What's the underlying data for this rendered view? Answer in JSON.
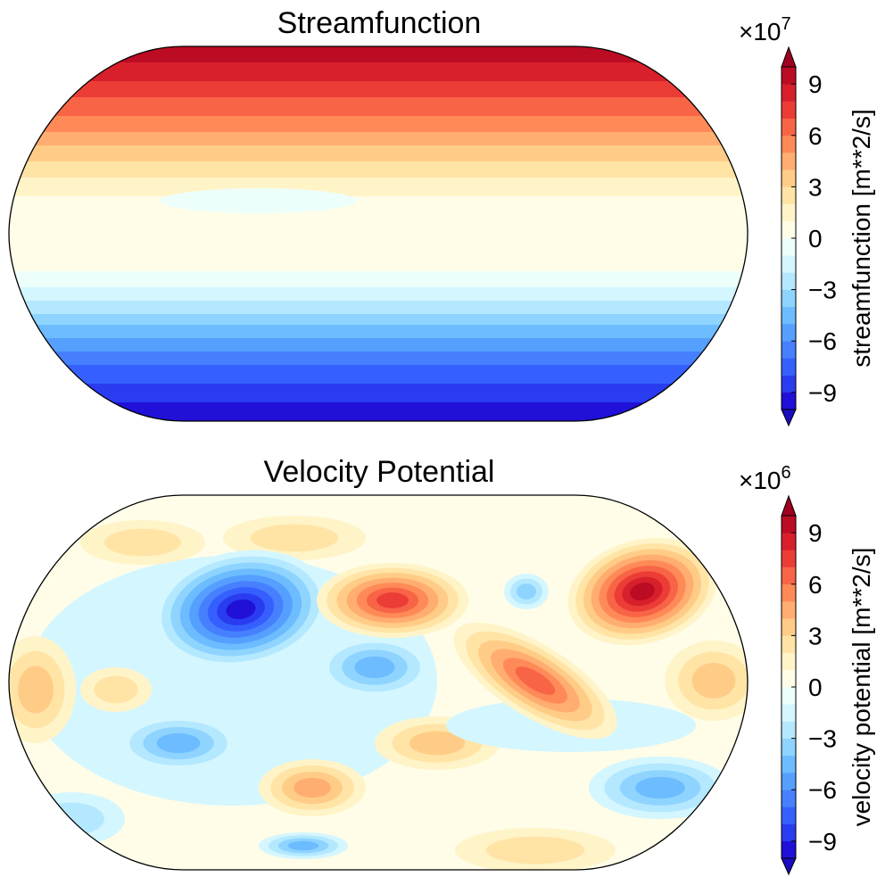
{
  "chart_data": [
    {
      "type": "contour",
      "title": "Streamfunction",
      "colorbar": {
        "label": "streamfunction [m**2/s]",
        "scale_base": "×10",
        "scale_exponent": "7",
        "lim": [
          -10,
          10
        ],
        "ticks": [
          {
            "value": -9,
            "label": "−9"
          },
          {
            "value": -6,
            "label": "−6"
          },
          {
            "value": -3,
            "label": "−3"
          },
          0,
          3,
          6,
          9
        ],
        "colors": [
          "#2010d8",
          "#2a3cf0",
          "#3560ff",
          "#4680ff",
          "#55a0ff",
          "#6cbcff",
          "#8ed4ff",
          "#b4e8ff",
          "#d4f6ff",
          "#ecfffb",
          "#fffde8",
          "#fff4c8",
          "#ffe4a6",
          "#ffcc88",
          "#ffad70",
          "#ff8a58",
          "#f86446",
          "#ec3c36",
          "#d8202c",
          "#bc0c24"
        ],
        "under_color": "#1a0cc0",
        "over_color": "#a00020"
      }
    },
    {
      "type": "contour",
      "title": "Velocity Potential",
      "colorbar": {
        "label": "velocity potential [m**2/s]",
        "scale_base": "×10",
        "scale_exponent": "6",
        "lim": [
          -10,
          10
        ],
        "ticks": [
          {
            "value": -9,
            "label": "−9"
          },
          {
            "value": -6,
            "label": "−6"
          },
          {
            "value": -3,
            "label": "−3"
          },
          0,
          3,
          6,
          9
        ],
        "colors": [
          "#2010d8",
          "#2a3cf0",
          "#3560ff",
          "#4680ff",
          "#55a0ff",
          "#6cbcff",
          "#8ed4ff",
          "#b4e8ff",
          "#d4f6ff",
          "#ecfffb",
          "#fffde8",
          "#fff4c8",
          "#ffe4a6",
          "#ffcc88",
          "#ffad70",
          "#ff8a58",
          "#f86446",
          "#ec3c36",
          "#d8202c",
          "#bc0c24"
        ],
        "under_color": "#1a0cc0",
        "over_color": "#a00020"
      }
    }
  ]
}
